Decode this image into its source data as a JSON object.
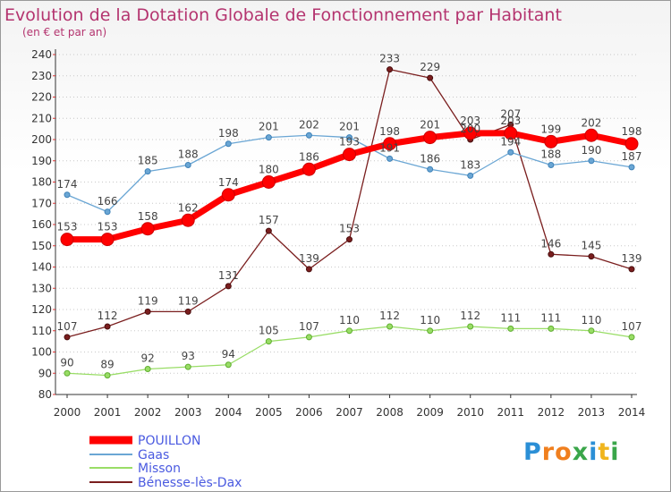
{
  "title": "Evolution de la Dotation Globale de Fonctionnement par Habitant",
  "subtitle": "(en € et par an)",
  "logo": {
    "letters": [
      "P",
      "r",
      "o",
      "x",
      "i",
      "t",
      "i"
    ],
    "colors": [
      "#2b8fd6",
      "#f07f1e",
      "#f07f1e",
      "#3aa64a",
      "#2b8fd6",
      "#f0b51e",
      "#3aa64a"
    ]
  },
  "chart_data": {
    "type": "line",
    "x": [
      "2000",
      "2001",
      "2002",
      "2003",
      "2004",
      "2005",
      "2006",
      "2007",
      "2008",
      "2009",
      "2010",
      "2011",
      "2012",
      "2013",
      "2014"
    ],
    "ylim": [
      80,
      240
    ],
    "yticks": [
      80,
      90,
      100,
      110,
      120,
      130,
      140,
      150,
      160,
      170,
      180,
      190,
      200,
      210,
      220,
      230,
      240
    ],
    "grid": "horizontal dotted",
    "legend_position": "bottom-left",
    "series": [
      {
        "name": "POUILLON",
        "color": "#ff0000",
        "values": [
          153,
          153,
          158,
          162,
          174,
          180,
          186,
          193,
          198,
          201,
          203,
          203,
          199,
          202,
          198
        ],
        "labels": [
          "153",
          "153",
          "158",
          "162",
          "174",
          "180",
          "186",
          "193",
          "198",
          "201",
          "203",
          "203",
          "199",
          "202",
          "198"
        ]
      },
      {
        "name": "Gaas",
        "color": "#6aa6d4",
        "values": [
          174,
          166,
          185,
          188,
          198,
          201,
          202,
          201,
          191,
          186,
          183,
          194,
          188,
          190,
          187
        ],
        "labels": [
          "174",
          "166",
          "185",
          "188",
          "198",
          "201",
          "202",
          "201",
          "191",
          "186",
          "183",
          "194",
          "188",
          "190",
          "187"
        ]
      },
      {
        "name": "Misson",
        "color": "#99dd66",
        "values": [
          90,
          89,
          92,
          93,
          94,
          105,
          107,
          110,
          112,
          110,
          112,
          111,
          111,
          110,
          107
        ],
        "labels": [
          "90",
          "89",
          "92",
          "93",
          "94",
          "105",
          "107",
          "110",
          "112",
          "110",
          "112",
          "111",
          "111",
          "110",
          "107"
        ]
      },
      {
        "name": "Bénesse-lès-Dax",
        "color": "#7a1e1e",
        "values": [
          107,
          112,
          119,
          119,
          131,
          157,
          139,
          153,
          233,
          229,
          200,
          207,
          146,
          145,
          139
        ],
        "labels": [
          "107",
          "112",
          "119",
          "119",
          "131",
          "157",
          "139",
          "153",
          "233",
          "229",
          "200",
          "207",
          "146",
          "145",
          "139"
        ]
      }
    ]
  }
}
